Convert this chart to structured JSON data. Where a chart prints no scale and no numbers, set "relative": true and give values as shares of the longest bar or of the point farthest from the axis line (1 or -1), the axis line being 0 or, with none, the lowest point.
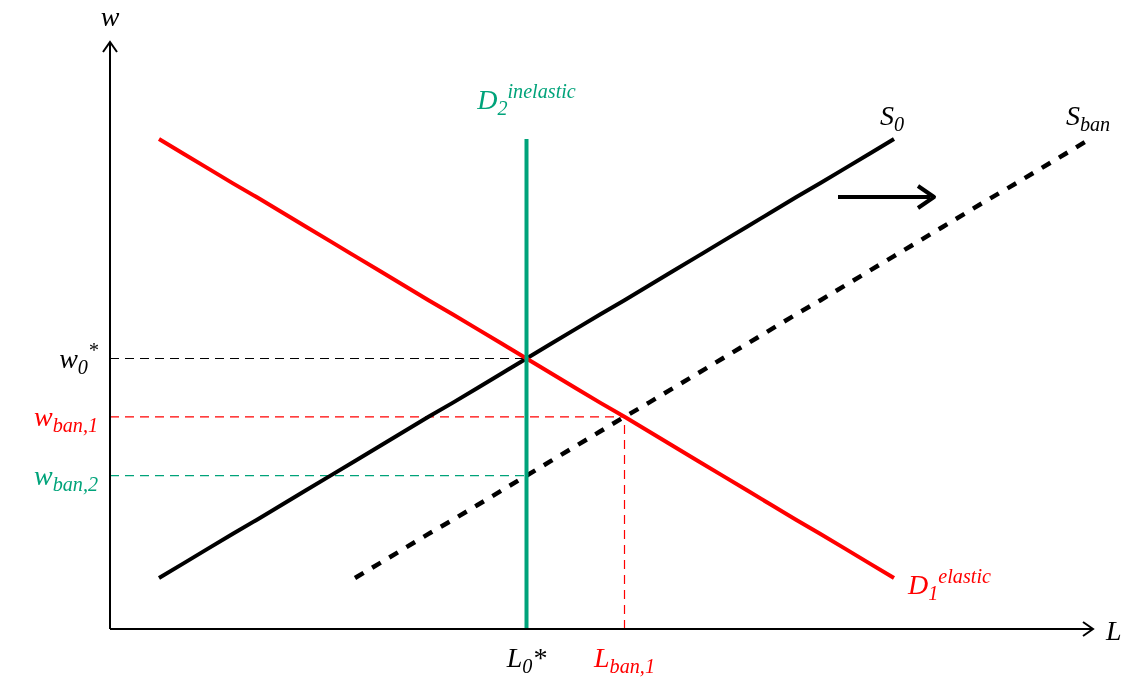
{
  "chart_data": {
    "type": "line",
    "relative": true,
    "xlabel": "L",
    "ylabel": "w",
    "categories": [
      null,
      null,
      null,
      null,
      null,
      null,
      null,
      null,
      null,
      null,
      null,
      null,
      null,
      null,
      null,
      null,
      null,
      "L$_{0}$*",
      null,
      null,
      null,
      "L$_{ban,1}$",
      null,
      null,
      null,
      null,
      null,
      null,
      null,
      null,
      null,
      null,
      null,
      null,
      null,
      null,
      null,
      null,
      null,
      null,
      null
    ],
    "series": [
      {
        "name": "S$_{0}$",
        "color": "#000000",
        "line_style": "solid",
        "values": [
          null,
          null,
          0.104,
          0.134,
          0.164,
          0.194,
          0.223,
          0.253,
          0.283,
          0.313,
          0.343,
          0.373,
          0.403,
          0.433,
          0.462,
          0.492,
          0.522,
          0.552,
          0.582,
          0.612,
          0.642,
          0.671,
          0.701,
          0.731,
          0.761,
          0.791,
          0.821,
          0.851,
          0.881,
          0.91,
          0.94,
          0.97,
          1.0,
          null,
          null,
          null,
          null,
          null,
          null,
          null,
          null
        ]
      },
      {
        "name": "S$_{ban}$",
        "color": "#000000",
        "line_style": "dotted",
        "values": [
          null,
          null,
          null,
          null,
          null,
          null,
          null,
          null,
          null,
          null,
          0.104,
          0.134,
          0.164,
          0.194,
          0.223,
          0.253,
          0.283,
          0.313,
          0.343,
          0.373,
          0.403,
          0.433,
          0.462,
          0.492,
          0.522,
          0.552,
          0.582,
          0.612,
          0.642,
          0.671,
          0.701,
          0.731,
          0.761,
          0.791,
          0.821,
          0.851,
          0.881,
          0.91,
          0.94,
          0.97,
          1.0
        ]
      },
      {
        "name": "D$_{1}$$^{elastic}$",
        "color": "#ff0000",
        "line_style": "solid",
        "values": [
          null,
          null,
          1.0,
          0.97,
          0.94,
          0.91,
          0.881,
          0.851,
          0.821,
          0.791,
          0.761,
          0.731,
          0.701,
          0.671,
          0.642,
          0.612,
          0.582,
          0.552,
          0.522,
          0.492,
          0.462,
          0.433,
          0.403,
          0.373,
          0.343,
          0.313,
          0.283,
          0.253,
          0.223,
          0.194,
          0.164,
          0.134,
          0.104,
          null,
          null,
          null,
          null,
          null,
          null,
          null,
          null
        ]
      },
      {
        "name": "w$_{0}$$^{*}$",
        "color": "#000000",
        "line_style": "dashed",
        "values": [
          0.552,
          0.552,
          0.552,
          0.552,
          0.552,
          0.552,
          0.552,
          0.552,
          0.552,
          0.552,
          0.552,
          0.552,
          0.552,
          0.552,
          0.552,
          0.552,
          0.552,
          0.552,
          null,
          null,
          null,
          null,
          null,
          null,
          null,
          null,
          null,
          null,
          null,
          null,
          null,
          null,
          null,
          null,
          null,
          null,
          null,
          null,
          null,
          null,
          null
        ]
      },
      {
        "name": "w$_{ban,1}$",
        "color": "#ff0000",
        "line_style": "dashed",
        "values": [
          0.433,
          0.433,
          0.433,
          0.433,
          0.433,
          0.433,
          0.433,
          0.433,
          0.433,
          0.433,
          0.433,
          0.433,
          0.433,
          0.433,
          0.433,
          0.433,
          0.433,
          0.433,
          0.433,
          0.433,
          0.433,
          0.433,
          null,
          null,
          null,
          null,
          null,
          null,
          null,
          null,
          null,
          null,
          null,
          null,
          null,
          null,
          null,
          null,
          null,
          null,
          null
        ]
      },
      {
        "name": "w$_{ban,2}$",
        "color": "#00a37a",
        "line_style": "dashed",
        "values": [
          0.313,
          0.313,
          0.313,
          0.313,
          0.313,
          0.313,
          0.313,
          0.313,
          0.313,
          0.313,
          0.313,
          0.313,
          0.313,
          0.313,
          0.313,
          0.313,
          0.313,
          0.313,
          null,
          null,
          null,
          null,
          null,
          null,
          null,
          null,
          null,
          null,
          null,
          null,
          null,
          null,
          null,
          null,
          null,
          null,
          null,
          null,
          null,
          null,
          null
        ]
      }
    ],
    "ref_lines": [
      {
        "axis": "x",
        "value": "L$_{0}$*",
        "label": "D$_{2}$$^{inelastic}$",
        "color": "#00a37a",
        "line_style": "solid"
      },
      {
        "axis": "x",
        "value": "L$_{ban,1}$",
        "color": "#ff0000",
        "line_style": "dashed"
      }
    ]
  }
}
